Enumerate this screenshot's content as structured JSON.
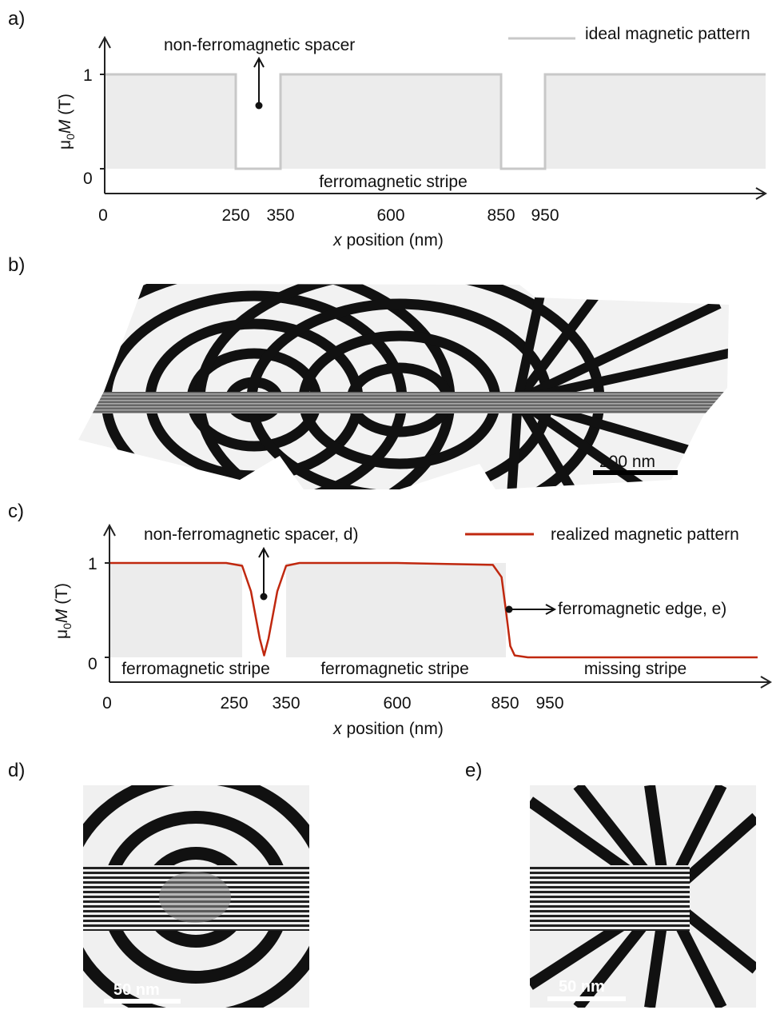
{
  "panels": {
    "a": {
      "label": "a)"
    },
    "b": {
      "label": "b)"
    },
    "c": {
      "label": "c)"
    },
    "d": {
      "label": "d)"
    },
    "e": {
      "label": "e)"
    }
  },
  "colors": {
    "ideal_line": "#c8c8c8",
    "region_fill": "#ececec",
    "realized_line": "#c0280f",
    "axis": "#222222"
  },
  "chart_data": [
    {
      "panel": "a",
      "type": "line",
      "legend": "ideal magnetic pattern",
      "legend_position": "top-right",
      "xlabel_var": "x",
      "xlabel_rest": " position (nm)",
      "ylabel_prefix": "μ",
      "ylabel_sub": "0",
      "ylabel_var": "M",
      "ylabel_unit": " (T)",
      "xticks": [
        "0",
        "250",
        "350",
        "600",
        "850",
        "950"
      ],
      "yticks": [
        "0",
        "1"
      ],
      "series": [
        {
          "name": "ideal magnetic pattern",
          "x": [
            0,
            250,
            250,
            350,
            350,
            850,
            850,
            950,
            950,
            1300
          ],
          "y": [
            1,
            1,
            0,
            0,
            1,
            1,
            0,
            0,
            1,
            1
          ]
        }
      ],
      "annotations": {
        "spacer": "non-ferromagnetic spacer",
        "stripe": "ferromagnetic stripe"
      }
    },
    {
      "panel": "c",
      "type": "line",
      "legend": "realized magnetic pattern",
      "legend_position": "top-right",
      "xlabel_var": "x",
      "xlabel_rest": " position (nm)",
      "ylabel_prefix": "μ",
      "ylabel_sub": "0",
      "ylabel_var": "M",
      "ylabel_unit": " (T)",
      "xticks": [
        "0",
        "250",
        "350",
        "600",
        "850",
        "950"
      ],
      "yticks": [
        "0",
        "1"
      ],
      "series": [
        {
          "name": "realized magnetic pattern",
          "x": [
            0,
            220,
            250,
            270,
            290,
            300,
            310,
            330,
            350,
            380,
            600,
            820,
            840,
            850,
            860,
            870,
            900,
            1300
          ],
          "y": [
            1,
            1,
            0.97,
            0.7,
            0.2,
            0.02,
            0.2,
            0.7,
            0.97,
            1,
            1,
            0.98,
            0.85,
            0.5,
            0.12,
            0.02,
            0,
            0
          ]
        }
      ],
      "annotations": {
        "spacer": "non-ferromagnetic spacer, d)",
        "edge": "ferromagnetic edge, e)",
        "stripe1": "ferromagnetic stripe",
        "stripe2": "ferromagnetic stripe",
        "missing": "missing stripe"
      }
    }
  ],
  "images": {
    "b": {
      "scale": "200 nm"
    },
    "d": {
      "scale": "50 nm"
    },
    "e": {
      "scale": "50 nm"
    }
  }
}
